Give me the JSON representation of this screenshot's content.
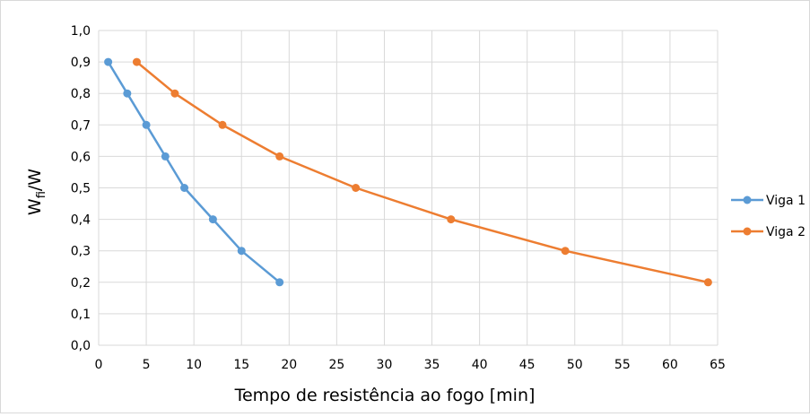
{
  "chart_data": {
    "type": "line",
    "title": "",
    "xlabel": "Tempo de resistência ao fogo [min]",
    "ylabel": {
      "main": "W",
      "sub": "fi",
      "tail": "/W"
    },
    "xlim": [
      0,
      65
    ],
    "ylim": [
      0,
      1.0
    ],
    "x_ticks": [
      "0",
      "5",
      "10",
      "15",
      "20",
      "25",
      "30",
      "35",
      "40",
      "45",
      "50",
      "55",
      "60",
      "65"
    ],
    "y_ticks": [
      "0,0",
      "0,1",
      "0,2",
      "0,3",
      "0,4",
      "0,5",
      "0,6",
      "0,7",
      "0,8",
      "0,9",
      "1,0"
    ],
    "grid": true,
    "legend_position": "right",
    "series": [
      {
        "name": "Viga 1",
        "color": "#5b9bd5",
        "points": [
          [
            1,
            0.9
          ],
          [
            3,
            0.8
          ],
          [
            5,
            0.7
          ],
          [
            7,
            0.6
          ],
          [
            9,
            0.5
          ],
          [
            12,
            0.4
          ],
          [
            15,
            0.3
          ],
          [
            19,
            0.2
          ]
        ]
      },
      {
        "name": "Viga 2",
        "color": "#ed7d31",
        "points": [
          [
            4,
            0.9
          ],
          [
            8,
            0.8
          ],
          [
            13,
            0.7
          ],
          [
            19,
            0.6
          ],
          [
            27,
            0.5
          ],
          [
            37,
            0.4
          ],
          [
            49,
            0.3
          ],
          [
            64,
            0.2
          ]
        ]
      }
    ]
  }
}
